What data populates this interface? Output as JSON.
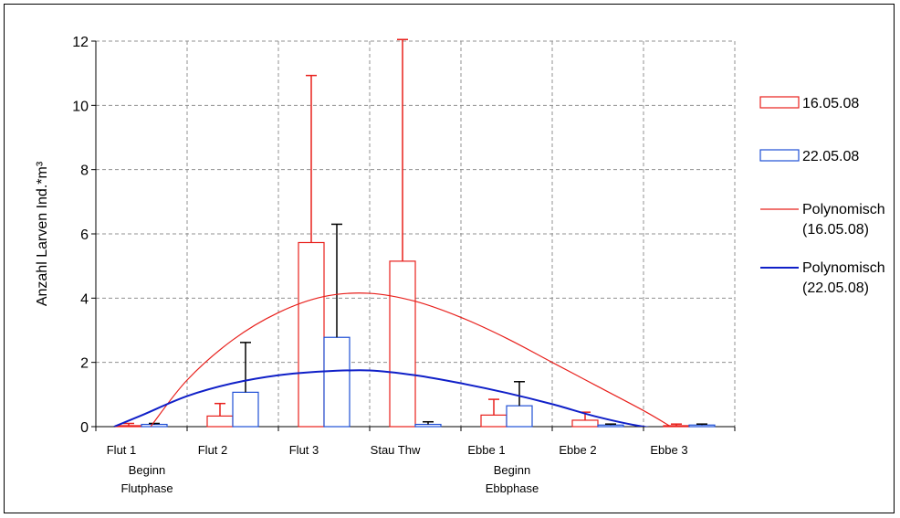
{
  "chart_data": {
    "type": "bar",
    "ylabel": "Anzahl Larven Ind.*m³",
    "xlabel": "",
    "ylim": [
      0,
      12
    ],
    "yticks": [
      "0",
      "2",
      "4",
      "6",
      "8",
      "10",
      "12"
    ],
    "categories": [
      "Flut 1",
      "Flut 2",
      "Flut 3",
      "Stau Thw",
      "Ebbe 1",
      "Ebbe 2",
      "Ebbe 3"
    ],
    "annotations": [
      {
        "after_category": "Flut 1",
        "lines": [
          "Beginn",
          "Flutphase"
        ]
      },
      {
        "after_category": "Ebbe 1",
        "lines": [
          "Beginn",
          "Ebbphase"
        ]
      }
    ],
    "series": [
      {
        "name": "16.05.08",
        "color": "#e8201c",
        "values": [
          0.03,
          0.33,
          5.73,
          5.15,
          0.36,
          0.2,
          0.03
        ],
        "error_upper": [
          0.1,
          0.72,
          10.93,
          12.05,
          0.85,
          0.45,
          0.08
        ]
      },
      {
        "name": "22.05.08",
        "color": "#1f4fd6",
        "values": [
          0.07,
          1.07,
          2.78,
          0.07,
          0.65,
          0.05,
          0.05
        ],
        "error_upper": [
          0.1,
          2.62,
          6.3,
          0.15,
          1.4,
          0.08,
          0.08
        ]
      }
    ],
    "trendlines": [
      {
        "name": "Polynomisch (16.05.08)",
        "label_lines": [
          "Polynomisch",
          "(16.05.08)"
        ],
        "color": "#e8201c",
        "x": [
          0.6,
          1.0,
          1.5,
          2.0,
          2.5,
          3.0,
          3.5,
          4.0,
          4.5,
          5.0,
          5.5,
          6.0,
          6.3
        ],
        "y": [
          0.0,
          1.45,
          2.7,
          3.55,
          4.05,
          4.15,
          3.9,
          3.4,
          2.75,
          2.0,
          1.25,
          0.5,
          0.0
        ]
      },
      {
        "name": "Polynomisch (22.05.08)",
        "label_lines": [
          "Polynomisch",
          "(22.05.08)"
        ],
        "color": "#1020c8",
        "x": [
          0.2,
          0.5,
          1.0,
          1.5,
          2.0,
          2.5,
          3.0,
          3.5,
          4.0,
          4.5,
          5.0,
          5.5,
          6.0,
          6.5,
          7.0,
          7.3
        ],
        "y": [
          0.0,
          0.35,
          0.95,
          1.35,
          1.6,
          1.72,
          1.75,
          1.6,
          1.35,
          1.05,
          0.7,
          0.3,
          0.0,
          -0.15,
          -0.05,
          0.15
        ]
      }
    ],
    "grid": true,
    "legend_position": "right"
  }
}
